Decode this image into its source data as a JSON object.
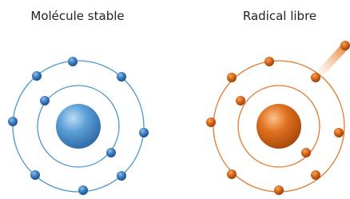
{
  "panels": [
    {
      "title": "Molécule stable"
    },
    {
      "title": "Radical libre"
    }
  ]
}
